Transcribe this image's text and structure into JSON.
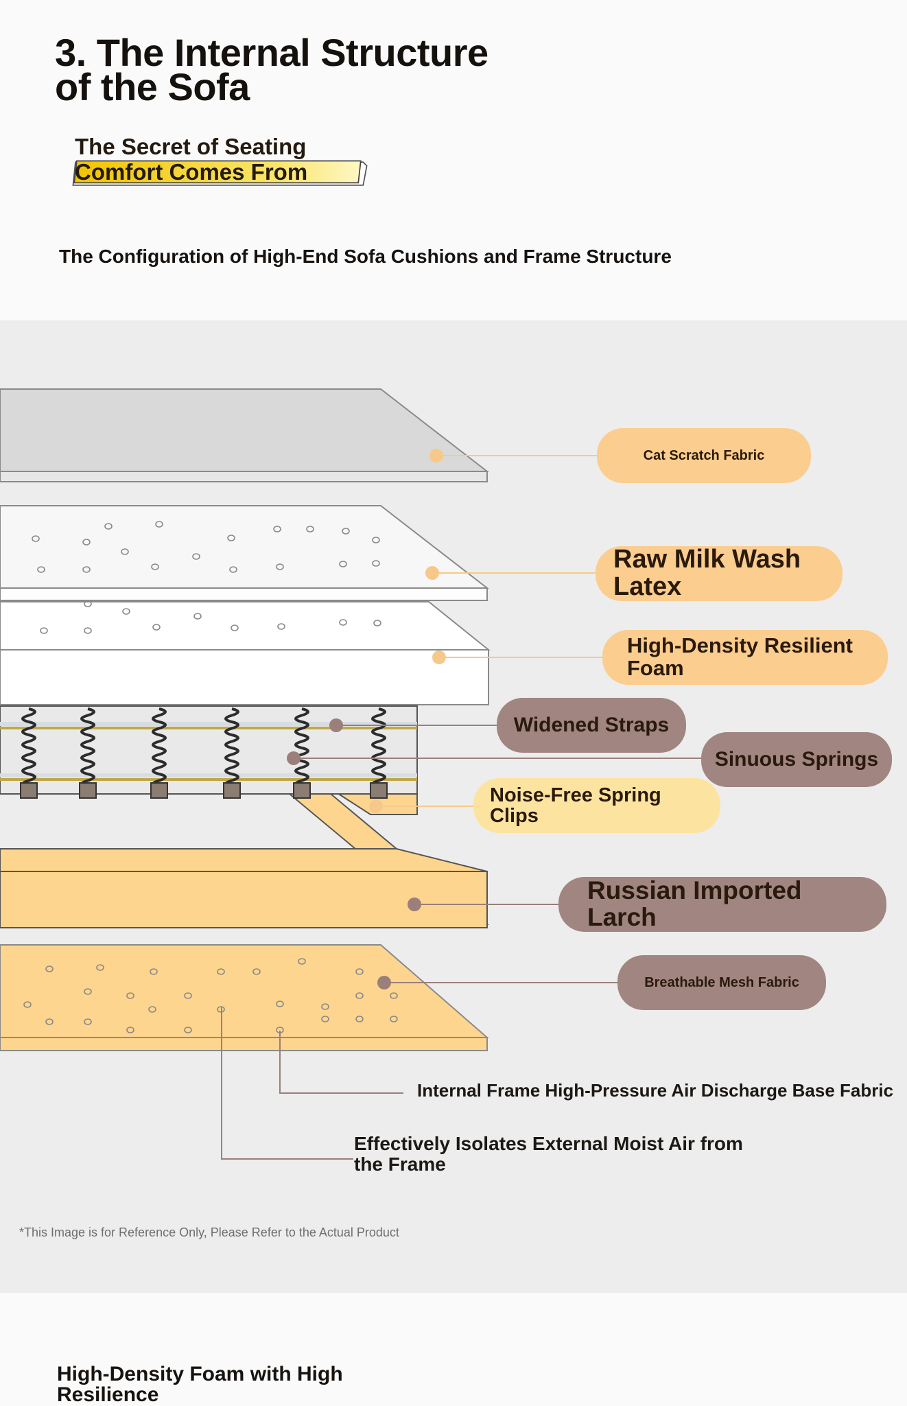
{
  "header": {
    "title": "3. The Internal Structure\nof the Sofa",
    "subtitle": "The Secret of Seating\nComfort Comes From",
    "configuration_heading": "The Configuration of High-End Sofa Cushions and Frame Structure"
  },
  "layers": [
    {
      "label": "Cat Scratch Fabric"
    },
    {
      "label": "Raw Milk Wash\nLatex"
    },
    {
      "label": "High-Density Resilient\nFoam"
    },
    {
      "label": "Widened Straps"
    },
    {
      "label": "Sinuous Springs"
    },
    {
      "label": "Noise-Free Spring\nClips"
    },
    {
      "label": "Russian Imported\nLarch"
    },
    {
      "label": "Breathable Mesh Fabric"
    }
  ],
  "callouts": {
    "base_fabric": "Internal Frame High-Pressure Air Discharge Base Fabric",
    "moisture": "Effectively Isolates External Moist Air from\nthe Frame"
  },
  "disclaimer": "*This Image is for Reference Only, Please Refer to the Actual Product",
  "next_section": {
    "heading": "High-Density Foam with High\nResilience"
  },
  "colors": {
    "accent_orange": "#fbcd8e",
    "accent_brown": "#a08581",
    "wood": "#fdd58e",
    "panel_bg": "#ededed"
  }
}
